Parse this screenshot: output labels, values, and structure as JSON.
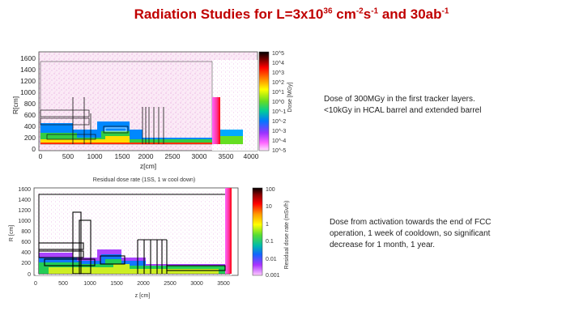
{
  "slide": {
    "title_parts": {
      "a": "Radiation Studies for L=3x10",
      "exp1": "36",
      "b": " cm",
      "exp2": "-2",
      "c": "s",
      "exp3": "-1",
      "d": " and 30ab",
      "exp4": "-1"
    },
    "note_top": {
      "line1": "Dose of 300MGy in the first tracker layers.",
      "line2": "<10kGy in HCAL barrel and extended barrel"
    },
    "note_bottom": {
      "text": "Dose from activation towards the end of FCC operation, 1 week of cooldown, so significant decrease for 1 month, 1 year."
    }
  },
  "plot_top": {
    "ylabel": "R[cm]",
    "xlabel": "z[cm]",
    "y_ticks": [
      "1600",
      "1400",
      "1200",
      "1000",
      "800",
      "600",
      "400",
      "200",
      "0"
    ],
    "x_ticks": [
      "0",
      "500",
      "1000",
      "1500",
      "2000",
      "2500",
      "3000",
      "3500",
      "4000"
    ],
    "colorbar_label": "Dose [MGy]",
    "colorbar_ticks": [
      "10^5",
      "10^4",
      "10^3",
      "10^2",
      "10^1",
      "10^0",
      "10^-1",
      "10^-2",
      "10^-3",
      "10^-4",
      "10^-5"
    ]
  },
  "plot_bottom": {
    "title": "Residual dose rate (1SS, 1 w cool down)",
    "ylabel": "R [cm]",
    "xlabel": "z [cm]",
    "y_ticks": [
      "1600",
      "1400",
      "1200",
      "1000",
      "800",
      "600",
      "400",
      "200",
      "0"
    ],
    "x_ticks": [
      "0",
      "500",
      "1000",
      "1500",
      "2000",
      "2500",
      "3000",
      "3500"
    ],
    "colorbar_label": "Residual dose rate (mSv/h)",
    "colorbar_ticks": [
      "100",
      "10",
      "1",
      "0.1",
      "0.01",
      "0.001"
    ]
  }
}
